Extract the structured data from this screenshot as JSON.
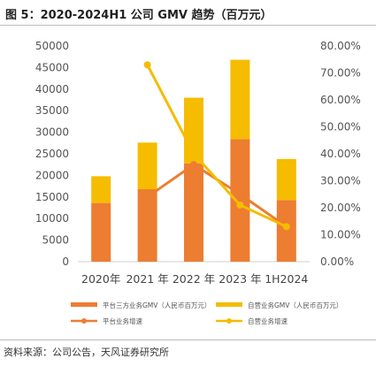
{
  "figure": {
    "title": "图 5：2020-2024H1 公司 GMV 趋势（百万元）",
    "source": "资料来源：公司公告，天风证券研究所"
  },
  "colors": {
    "platform": "#ed7d31",
    "self": "#f5bc00"
  },
  "chart_data": {
    "type": "bar",
    "stacked": true,
    "categories": [
      "2020年",
      "2021 年",
      "2022 年",
      "2023 年",
      "1H2024"
    ],
    "series": [
      {
        "name": "平台三方业务GMV（人民币百万元）",
        "kind": "bar",
        "axis": "left",
        "values": [
          13600,
          16800,
          22800,
          28400,
          14300
        ]
      },
      {
        "name": "自营业务GMV（人民币百万元）",
        "kind": "bar",
        "axis": "left",
        "values": [
          6200,
          10800,
          15200,
          18400,
          9500
        ]
      },
      {
        "name": "平台业务增速",
        "kind": "line",
        "axis": "right",
        "values": [
          null,
          24.0,
          36.0,
          25.0,
          13.0
        ]
      },
      {
        "name": "自营业务增速",
        "kind": "line",
        "axis": "right",
        "values": [
          null,
          73.0,
          40.0,
          21.0,
          13.0
        ]
      }
    ],
    "y_left": {
      "range": [
        0,
        50000
      ],
      "ticks": [
        "0",
        "5000",
        "10000",
        "15000",
        "20000",
        "25000",
        "30000",
        "35000",
        "40000",
        "45000",
        "50000"
      ]
    },
    "y_right": {
      "range": [
        0,
        80
      ],
      "ticks": [
        "0.00%",
        "10.00%",
        "20.00%",
        "30.00%",
        "40.00%",
        "50.00%",
        "60.00%",
        "70.00%",
        "80.00%"
      ]
    },
    "grid": false,
    "legend_position": "bottom"
  }
}
